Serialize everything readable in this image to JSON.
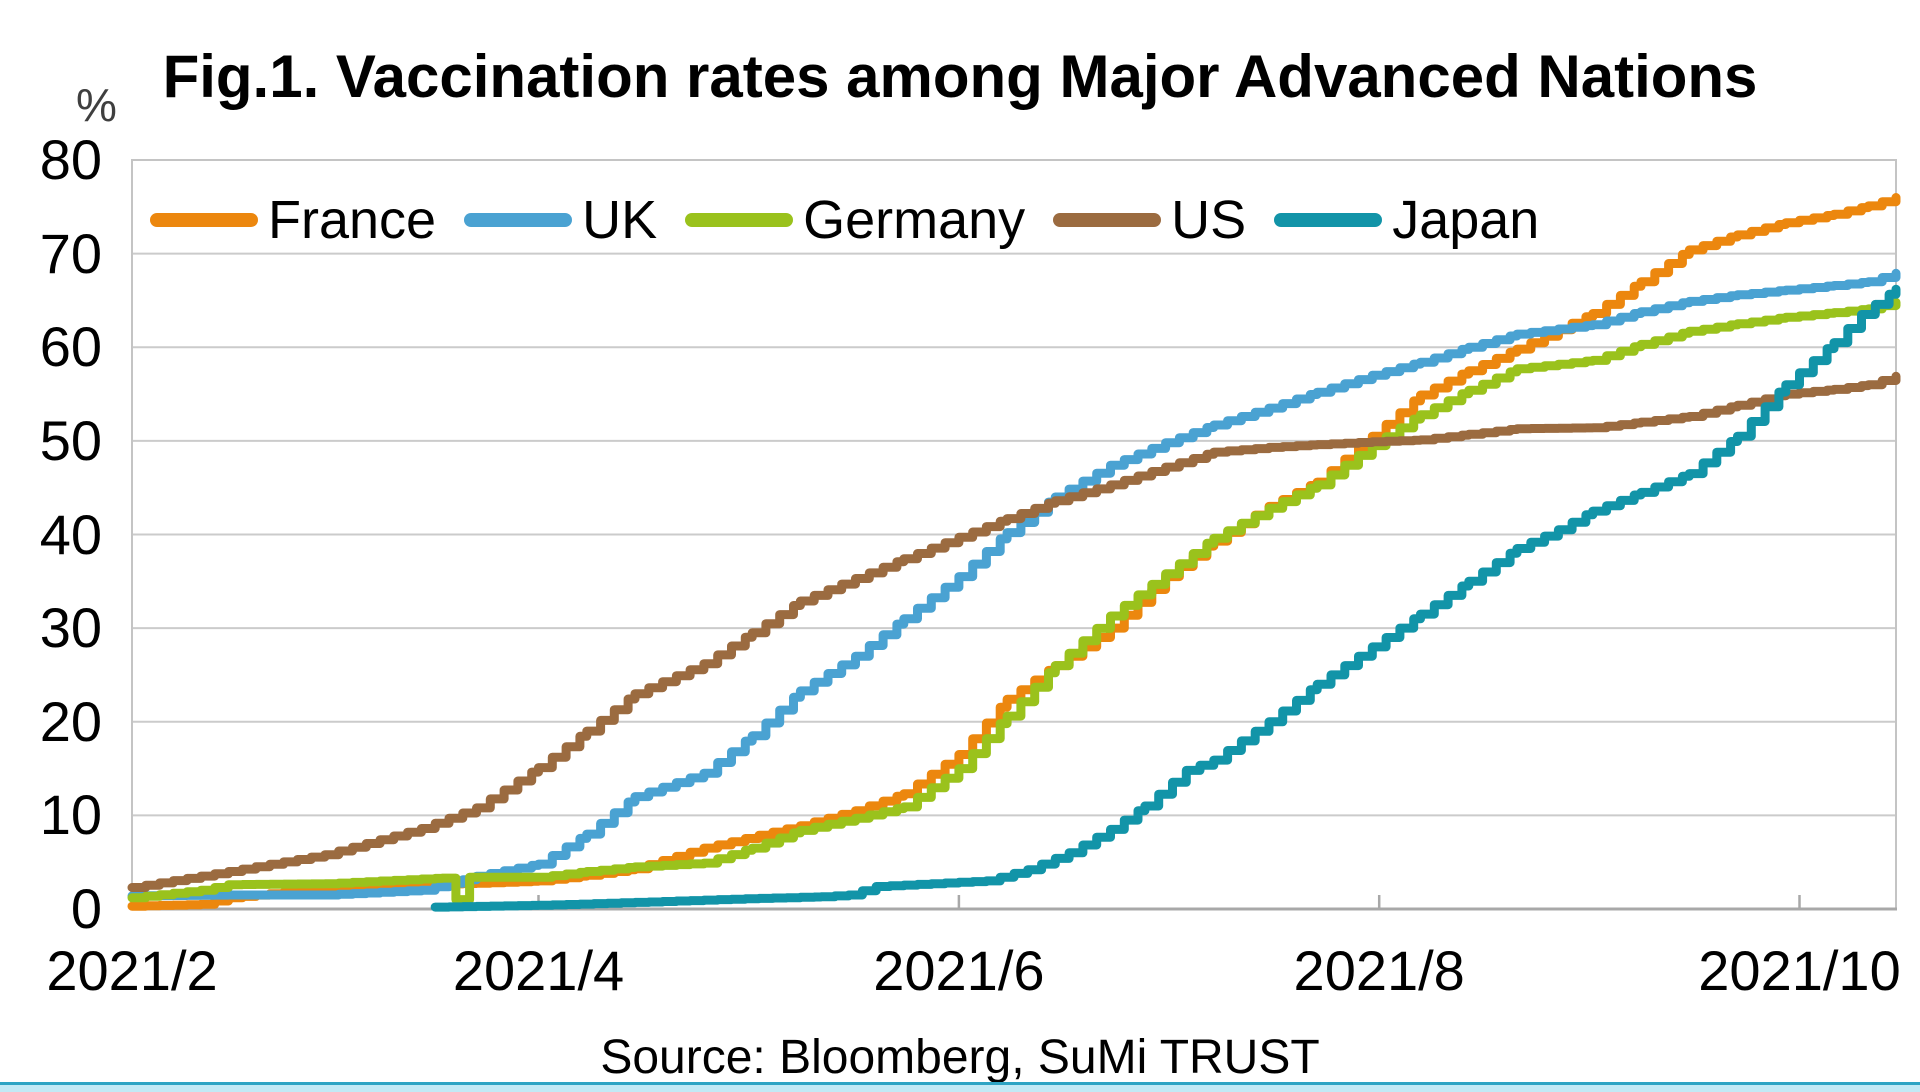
{
  "title": "Fig.1. Vaccination rates among Major Advanced Nations",
  "source": "Source: Bloomberg, SuMi TRUST",
  "y_axis": {
    "unit_label": "%",
    "ticks": [
      80,
      70,
      60,
      50,
      40,
      30,
      20,
      10,
      0
    ],
    "min": 0,
    "max": 80
  },
  "x_axis": {
    "tick_labels": [
      "2021/2",
      "2021/4",
      "2021/6",
      "2021/8",
      "2021/10"
    ],
    "ticks_days": [
      0,
      59,
      120,
      181,
      242
    ],
    "epoch": "2021-02-01"
  },
  "chart_data": {
    "type": "line",
    "title": "Fig.1. Vaccination rates among Major Advanced Nations",
    "xlabel": "",
    "ylabel": "%",
    "ylim": [
      0,
      80
    ],
    "grid": "horizontal",
    "legend_position": "top-left-inside",
    "x_unit": "days_since_2021-02-01",
    "x_range_days": [
      0,
      256
    ],
    "x_tick_positions_days": [
      0,
      59,
      120,
      181,
      242
    ],
    "x_tick_labels": [
      "2021/2",
      "2021/4",
      "2021/6",
      "2021/8",
      "2021/10"
    ],
    "series": [
      {
        "name": "France",
        "color": "#EC870E",
        "points": [
          [
            0,
            0.3
          ],
          [
            10,
            0.5
          ],
          [
            14,
            1.2
          ],
          [
            28,
            2.2
          ],
          [
            42,
            2.6
          ],
          [
            52,
            2.8
          ],
          [
            59,
            3.0
          ],
          [
            66,
            3.6
          ],
          [
            73,
            4.3
          ],
          [
            83,
            6.5
          ],
          [
            97,
            8.9
          ],
          [
            105,
            10.5
          ],
          [
            112,
            12.3
          ],
          [
            120,
            16.5
          ],
          [
            127,
            22.4
          ],
          [
            134,
            26.0
          ],
          [
            142,
            30.0
          ],
          [
            150,
            35.5
          ],
          [
            157,
            39.3
          ],
          [
            165,
            43.0
          ],
          [
            172,
            45.6
          ],
          [
            180,
            50.5
          ],
          [
            187,
            54.9
          ],
          [
            194,
            57.5
          ],
          [
            201,
            59.8
          ],
          [
            212,
            63.6
          ],
          [
            219,
            67.0
          ],
          [
            226,
            70.4
          ],
          [
            233,
            72.0
          ],
          [
            240,
            73.3
          ],
          [
            247,
            74.2
          ],
          [
            252,
            75.1
          ],
          [
            256,
            76.0
          ]
        ]
      },
      {
        "name": "UK",
        "color": "#4AA2D2",
        "points": [
          [
            0,
            1.4
          ],
          [
            14,
            1.5
          ],
          [
            28,
            1.5
          ],
          [
            42,
            2.0
          ],
          [
            50,
            3.5
          ],
          [
            59,
            4.8
          ],
          [
            66,
            8.0
          ],
          [
            73,
            12.0
          ],
          [
            83,
            14.5
          ],
          [
            90,
            18.5
          ],
          [
            97,
            23.3
          ],
          [
            105,
            27.0
          ],
          [
            112,
            31.0
          ],
          [
            120,
            35.5
          ],
          [
            127,
            40.2
          ],
          [
            134,
            44.0
          ],
          [
            142,
            47.4
          ],
          [
            150,
            49.8
          ],
          [
            157,
            51.7
          ],
          [
            165,
            53.5
          ],
          [
            172,
            55.2
          ],
          [
            180,
            57.0
          ],
          [
            187,
            58.4
          ],
          [
            194,
            60.0
          ],
          [
            201,
            61.4
          ],
          [
            212,
            62.4
          ],
          [
            219,
            63.8
          ],
          [
            226,
            64.9
          ],
          [
            233,
            65.6
          ],
          [
            240,
            66.1
          ],
          [
            247,
            66.6
          ],
          [
            252,
            67.0
          ],
          [
            256,
            67.9
          ]
        ]
      },
      {
        "name": "Germany",
        "color": "#9AC21C",
        "points": [
          [
            0,
            1.2
          ],
          [
            10,
            2.0
          ],
          [
            14,
            2.6
          ],
          [
            28,
            2.7
          ],
          [
            42,
            3.2
          ],
          [
            45,
            3.3
          ],
          [
            47,
            1.0
          ],
          [
            49,
            3.4
          ],
          [
            59,
            3.4
          ],
          [
            66,
            4.0
          ],
          [
            73,
            4.5
          ],
          [
            83,
            4.9
          ],
          [
            90,
            6.5
          ],
          [
            97,
            8.4
          ],
          [
            105,
            9.7
          ],
          [
            112,
            10.9
          ],
          [
            120,
            15.0
          ],
          [
            127,
            20.6
          ],
          [
            134,
            26.0
          ],
          [
            142,
            31.3
          ],
          [
            150,
            35.8
          ],
          [
            157,
            39.6
          ],
          [
            165,
            42.8
          ],
          [
            172,
            45.3
          ],
          [
            180,
            49.5
          ],
          [
            187,
            52.8
          ],
          [
            194,
            55.4
          ],
          [
            201,
            57.7
          ],
          [
            212,
            58.6
          ],
          [
            219,
            60.3
          ],
          [
            226,
            61.7
          ],
          [
            233,
            62.5
          ],
          [
            240,
            63.2
          ],
          [
            247,
            63.7
          ],
          [
            252,
            64.1
          ],
          [
            256,
            64.8
          ]
        ]
      },
      {
        "name": "US",
        "color": "#9B6B40",
        "points": [
          [
            0,
            2.3
          ],
          [
            14,
            4.0
          ],
          [
            28,
            5.8
          ],
          [
            42,
            8.6
          ],
          [
            50,
            10.8
          ],
          [
            59,
            15.1
          ],
          [
            66,
            19.0
          ],
          [
            73,
            23.0
          ],
          [
            83,
            26.2
          ],
          [
            90,
            29.5
          ],
          [
            97,
            32.9
          ],
          [
            105,
            35.3
          ],
          [
            112,
            37.4
          ],
          [
            120,
            39.7
          ],
          [
            127,
            41.7
          ],
          [
            134,
            43.6
          ],
          [
            142,
            45.3
          ],
          [
            150,
            47.2
          ],
          [
            157,
            48.8
          ],
          [
            165,
            49.3
          ],
          [
            172,
            49.6
          ],
          [
            180,
            49.9
          ],
          [
            187,
            50.1
          ],
          [
            194,
            50.7
          ],
          [
            201,
            51.3
          ],
          [
            212,
            51.4
          ],
          [
            219,
            52.0
          ],
          [
            226,
            52.6
          ],
          [
            233,
            53.8
          ],
          [
            240,
            55.0
          ],
          [
            247,
            55.5
          ],
          [
            252,
            56.0
          ],
          [
            256,
            56.9
          ]
        ]
      },
      {
        "name": "Japan",
        "color": "#1294A8",
        "points": [
          [
            44,
            0.2
          ],
          [
            59,
            0.4
          ],
          [
            73,
            0.7
          ],
          [
            89,
            1.1
          ],
          [
            100,
            1.3
          ],
          [
            104,
            1.5
          ],
          [
            108,
            2.4
          ],
          [
            116,
            2.7
          ],
          [
            124,
            3.0
          ],
          [
            130,
            4.2
          ],
          [
            136,
            6.0
          ],
          [
            142,
            8.5
          ],
          [
            147,
            11.0
          ],
          [
            153,
            14.8
          ],
          [
            157,
            15.9
          ],
          [
            165,
            20.0
          ],
          [
            172,
            24.0
          ],
          [
            180,
            28.0
          ],
          [
            187,
            31.5
          ],
          [
            194,
            35.0
          ],
          [
            201,
            38.5
          ],
          [
            207,
            40.5
          ],
          [
            212,
            42.5
          ],
          [
            219,
            44.5
          ],
          [
            226,
            46.5
          ],
          [
            233,
            50.5
          ],
          [
            240,
            56.0
          ],
          [
            247,
            60.5
          ],
          [
            251,
            63.5
          ],
          [
            256,
            66.2
          ]
        ]
      }
    ]
  }
}
